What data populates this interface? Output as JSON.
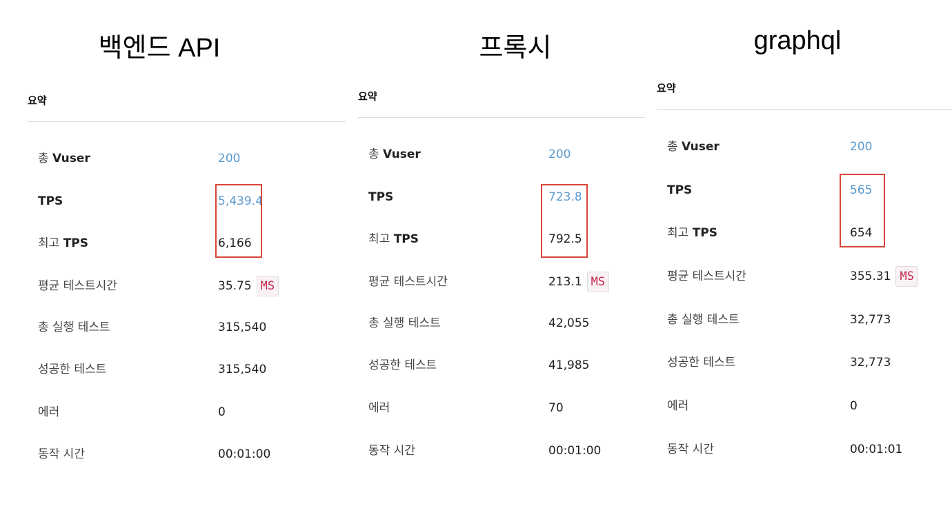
{
  "panels": [
    {
      "title": "백엔드 API",
      "summary_label": "요약",
      "rows": [
        {
          "label_prefix": "총 ",
          "label_bold": "Vuser",
          "value": "200"
        },
        {
          "label_prefix": "",
          "label_bold": "TPS",
          "value": "5,439.4"
        },
        {
          "label_prefix": "최고 ",
          "label_bold": "TPS",
          "value": "6,166"
        },
        {
          "label": "평균 테스트시간",
          "value": "35.75",
          "unit": "MS"
        },
        {
          "label": "총 실행 테스트",
          "value": "315,540"
        },
        {
          "label": "성공한 테스트",
          "value": "315,540"
        },
        {
          "label": "에러",
          "value": "0"
        },
        {
          "label": "동작 시간",
          "value": "00:01:00"
        }
      ]
    },
    {
      "title": "프록시",
      "summary_label": "요약",
      "rows": [
        {
          "label_prefix": "총 ",
          "label_bold": "Vuser",
          "value": "200"
        },
        {
          "label_prefix": "",
          "label_bold": "TPS",
          "value": "723.8"
        },
        {
          "label_prefix": "최고 ",
          "label_bold": "TPS",
          "value": "792.5"
        },
        {
          "label": "평균 테스트시간",
          "value": "213.1",
          "unit": "MS"
        },
        {
          "label": "총 실행 테스트",
          "value": "42,055"
        },
        {
          "label": "성공한 테스트",
          "value": "41,985"
        },
        {
          "label": "에러",
          "value": "70"
        },
        {
          "label": "동작 시간",
          "value": "00:01:00"
        }
      ]
    },
    {
      "title": "graphql",
      "summary_label": "요약",
      "rows": [
        {
          "label_prefix": "총 ",
          "label_bold": "Vuser",
          "value": "200"
        },
        {
          "label_prefix": "",
          "label_bold": "TPS",
          "value": "565"
        },
        {
          "label_prefix": "최고 ",
          "label_bold": "TPS",
          "value": "654"
        },
        {
          "label": "평균 테스트시간",
          "value": "355.31",
          "unit": "MS"
        },
        {
          "label": "총 실행 테스트",
          "value": "32,773"
        },
        {
          "label": "성공한 테스트",
          "value": "32,773"
        },
        {
          "label": "에러",
          "value": "0"
        },
        {
          "label": "동작 시간",
          "value": "00:01:01"
        }
      ]
    }
  ],
  "colors": {
    "link_value": "#5b9bd0",
    "highlight_box": "#d9463a",
    "ms_badge_text": "#c7254e"
  }
}
